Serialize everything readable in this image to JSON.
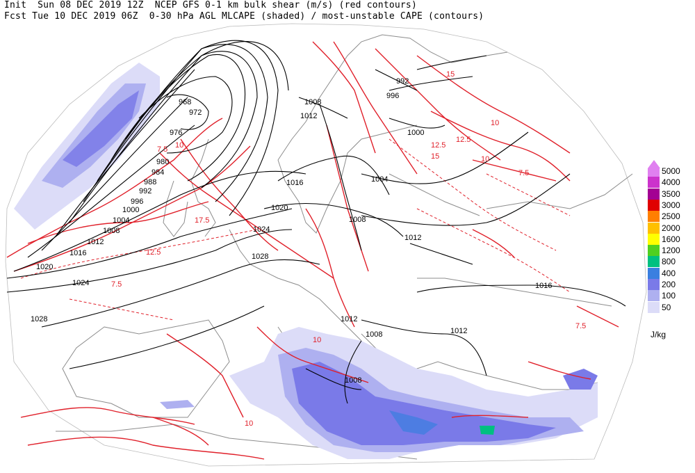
{
  "header": {
    "line1": "Init  Sun 08 DEC 2019 12Z  NCEP GFS 0-1 km bulk shear (m/s) (red contours)",
    "line2": "Fcst Tue 10 DEC 2019 06Z  0-30 hPa AGL MLCAPE (shaded) / most-unstable CAPE (contours)"
  },
  "legend": {
    "unit": "J/kg",
    "levels": [
      {
        "label": "5000",
        "color": "#e080f0"
      },
      {
        "label": "4000",
        "color": "#cc33cc"
      },
      {
        "label": "3500",
        "color": "#a30093"
      },
      {
        "label": "3000",
        "color": "#e00000"
      },
      {
        "label": "2500",
        "color": "#ff7f00"
      },
      {
        "label": "2000",
        "color": "#ffc000"
      },
      {
        "label": "1600",
        "color": "#ffff00"
      },
      {
        "label": "1200",
        "color": "#50d020"
      },
      {
        "label": "800",
        "color": "#00c080"
      },
      {
        "label": "400",
        "color": "#3a7fe0"
      },
      {
        "label": "200",
        "color": "#7a7ae8"
      },
      {
        "label": "100",
        "color": "#aeb0f0"
      },
      {
        "label": "50",
        "color": "#dcdcf8"
      }
    ]
  },
  "isobars": [
    "968",
    "972",
    "976",
    "980",
    "984",
    "988",
    "992",
    "996",
    "1000",
    "1004",
    "1008",
    "1012",
    "1016",
    "1020",
    "1024",
    "1028",
    "1008",
    "1012",
    "1016",
    "1020",
    "1024",
    "1028",
    "1000",
    "1004",
    "1008",
    "1012",
    "1016",
    "992",
    "996",
    "1012",
    "1008",
    "1008",
    "1012"
  ],
  "shear_labels": [
    "7.5",
    "10",
    "12.5",
    "15",
    "17.5",
    "7.5",
    "10",
    "12.5",
    "10",
    "7.5",
    "12.5",
    "10",
    "7.5",
    "10",
    "15"
  ],
  "colors": {
    "shear": "#e0202a",
    "isobar": "#000000",
    "border": "#8c8c8c",
    "cape_light": "#dcdcf8",
    "cape_mid": "#aeb0f0",
    "cape_dark": "#7a7ae8",
    "cape_deep": "#3a7fe0",
    "cape_core": "#00c080"
  }
}
